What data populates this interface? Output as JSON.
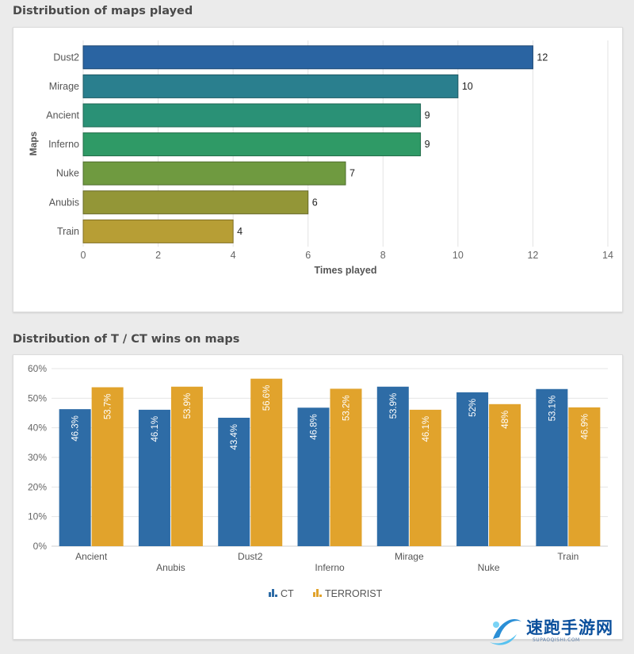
{
  "sections": {
    "maps_title": "Distribution of maps played",
    "wins_title": "Distribution of T / CT wins on maps"
  },
  "chart_data": [
    {
      "type": "bar",
      "orientation": "horizontal",
      "title": "Distribution of maps played",
      "categories": [
        "Dust2",
        "Mirage",
        "Ancient",
        "Inferno",
        "Nuke",
        "Anubis",
        "Train"
      ],
      "values": [
        12,
        10,
        9,
        9,
        7,
        6,
        4
      ],
      "bar_colors": [
        "#2a64a2",
        "#2a7f8e",
        "#2a9176",
        "#2f9a66",
        "#6f9a40",
        "#939637",
        "#b79e35"
      ],
      "xlabel": "Times played",
      "ylabel": "Maps",
      "xlim": [
        0,
        14
      ],
      "xticks": [
        0,
        2,
        4,
        6,
        8,
        10,
        12,
        14
      ],
      "grid": true,
      "data_labels": true
    },
    {
      "type": "bar",
      "title": "Distribution of T / CT wins on maps",
      "categories": [
        "Ancient",
        "Anubis",
        "Dust2",
        "Inferno",
        "Mirage",
        "Nuke",
        "Train"
      ],
      "series": [
        {
          "name": "CT",
          "color": "#2e6ca6",
          "values": [
            46.3,
            46.1,
            43.4,
            46.8,
            53.9,
            52,
            53.1
          ],
          "labels": [
            "46.3%",
            "46.1%",
            "43.4%",
            "46.8%",
            "53.9%",
            "52%",
            "53.1%"
          ]
        },
        {
          "name": "TERRORIST",
          "color": "#e1a32c",
          "values": [
            53.7,
            53.9,
            56.6,
            53.2,
            46.1,
            48,
            46.9
          ],
          "labels": [
            "53.7%",
            "53.9%",
            "56.6%",
            "53.2%",
            "46.1%",
            "48%",
            "46.9%"
          ]
        }
      ],
      "ylim": [
        0,
        60
      ],
      "yticks": [
        "0%",
        "10%",
        "20%",
        "30%",
        "40%",
        "50%",
        "60%"
      ],
      "grid": true,
      "legend_position": "bottom-center",
      "data_labels": true
    }
  ],
  "watermark": {
    "text": "速跑手游网",
    "sub": "SUPAOQISHI.COM",
    "icon": "swoosh-logo-icon"
  }
}
